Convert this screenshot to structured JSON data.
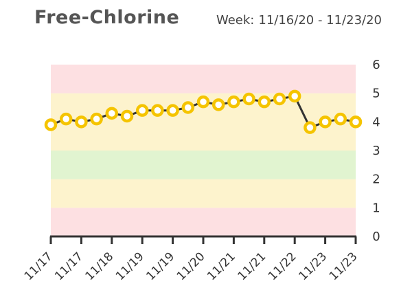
{
  "header": {
    "title": "Free-Chlorine",
    "week_label": "Week:",
    "week_range": "11/16/20 - 11/23/20"
  },
  "chart_data": {
    "type": "line",
    "title": "Free-Chlorine",
    "ylim": [
      0,
      6
    ],
    "y_ticks": [
      0,
      1,
      2,
      3,
      4,
      5,
      6
    ],
    "y_axis_side": "right",
    "x_tick_labels": [
      "11/17",
      "11/17",
      "11/18",
      "11/19",
      "11/19",
      "11/20",
      "11/21",
      "11/21",
      "11/22",
      "11/23",
      "11/23"
    ],
    "bands": [
      {
        "from": 0,
        "to": 1,
        "color": "#fde0e2"
      },
      {
        "from": 1,
        "to": 2,
        "color": "#fdf3cd"
      },
      {
        "from": 2,
        "to": 3,
        "color": "#e1f4d0"
      },
      {
        "from": 3,
        "to": 5,
        "color": "#fdf3cd"
      },
      {
        "from": 5,
        "to": 6,
        "color": "#fde0e2"
      }
    ],
    "series": [
      {
        "values": [
          3.9,
          4.1,
          4.0,
          4.1,
          4.3,
          4.2,
          4.4,
          4.4,
          4.4,
          4.5,
          4.7,
          4.6,
          4.7,
          4.8,
          4.7,
          4.8,
          4.9,
          3.8,
          4.0,
          4.1,
          4.0
        ],
        "line_color": "#333333",
        "marker_color": "#f5c400"
      }
    ]
  }
}
